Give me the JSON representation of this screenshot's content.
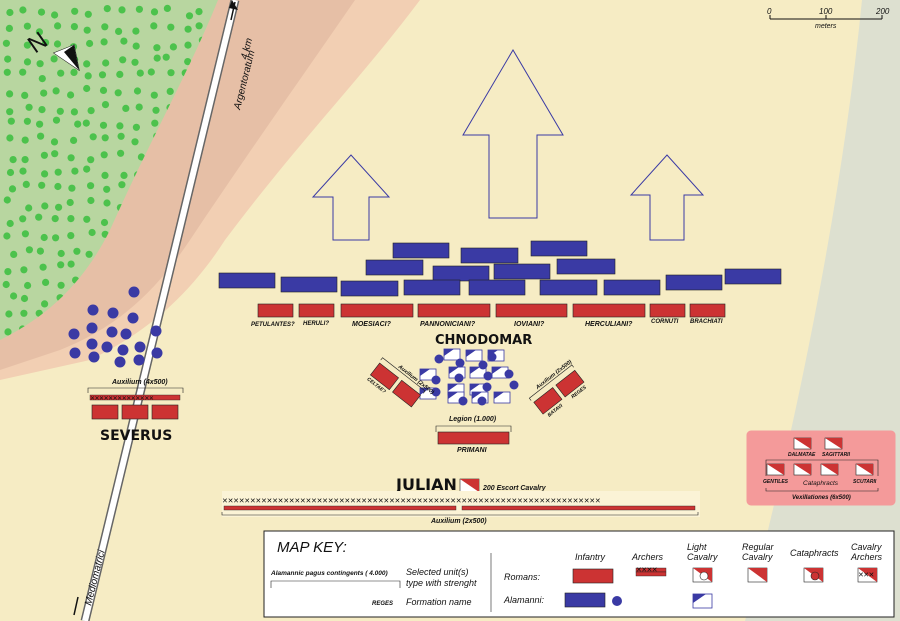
{
  "roads": {
    "north": "Argentoratum",
    "north_distance": "4 km",
    "south": "Mediomatrici"
  },
  "compass": {
    "letter": "N"
  },
  "scale": {
    "ticks": [
      "0",
      "100",
      "200"
    ],
    "unit": "meters"
  },
  "roman_units": {
    "front_line": [
      "PETULANTES?",
      "HERULI?",
      "MOESIACI?",
      "PANNONICIANI?",
      "IOVIANI?",
      "HERCULIANI?",
      "CORNUTI",
      "BRACHIATI"
    ],
    "left_wing": {
      "commander": "SEVERUS",
      "unit": "Auxilium (4x500)"
    },
    "left_block": {
      "label": "Auxilium (2x500)",
      "name": "CELTAE?"
    },
    "right_block": {
      "label": "Auxilium (2x500)",
      "names": [
        "BATAVI",
        "REGES"
      ]
    },
    "legion": {
      "label": "Legion (1.000)",
      "name": "PRIMANI"
    },
    "julian": {
      "commander": "JULIAN",
      "escort": "200 Escort Cavalry"
    },
    "rear_line": {
      "label": "Auxilium (2x500)"
    }
  },
  "alamanni": {
    "commander": "CHNODOMAR"
  },
  "cavalry_box": {
    "units": [
      "DALMATAE",
      "SAGITTARII",
      "GENTILES",
      "Cataphracts",
      "SCUTARII"
    ],
    "label": "Vexillationes (6x500)"
  },
  "key": {
    "title": "MAP KEY:",
    "example_label": "Alamannic pagus contingents ( 4.000)",
    "example_desc_1": "Selected unit(s)",
    "example_desc_2": "type with strenght",
    "formation_example": "REGES",
    "formation_desc": "Formation name",
    "col_headers": [
      "Infantry",
      "Archers",
      "Light Cavalry",
      "Regular Cavalry",
      "Cataphracts",
      "Cavalry Archers"
    ],
    "rows": [
      "Romans:",
      "Alamanni:"
    ]
  },
  "colors": {
    "roman": "#cc3333",
    "alamanni": "#3a3aa4",
    "forest": "#b8d6a0",
    "tree": "#4cc24c",
    "riverbank": "#e6bfa6",
    "plain": "#f6ecc4",
    "marsh": "#dde0d0",
    "cavalry_box": "#f49a9a"
  }
}
